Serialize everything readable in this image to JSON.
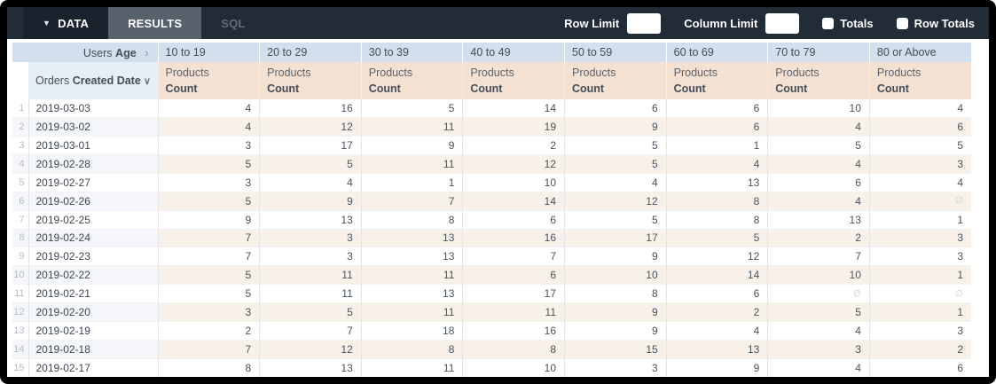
{
  "toolbar": {
    "data_tab": "DATA",
    "results_tab": "RESULTS",
    "sql_tab": "SQL",
    "row_limit_label": "Row Limit",
    "row_limit_value": "",
    "column_limit_label": "Column Limit",
    "column_limit_value": "",
    "totals_label": "Totals",
    "row_totals_label": "Row Totals",
    "totals_checked": false,
    "row_totals_checked": false
  },
  "table": {
    "pivot_field": {
      "view": "Users",
      "field": "Age",
      "expand_icon": "chevron-right"
    },
    "pivot_values": [
      "10 to 19",
      "20 to 29",
      "30 to 39",
      "40 to 49",
      "50 to 59",
      "60 to 69",
      "70 to 79",
      "80 or Above"
    ],
    "row_field": {
      "view": "Orders",
      "field": "Created Date",
      "sort_icon": "chevron-down"
    },
    "measure": {
      "view": "Products",
      "field": "Count"
    },
    "null_symbol": "∅",
    "rows": [
      {
        "index": 1,
        "date": "2019-03-03",
        "values": [
          4,
          16,
          5,
          14,
          6,
          6,
          10,
          4
        ]
      },
      {
        "index": 2,
        "date": "2019-03-02",
        "values": [
          4,
          12,
          11,
          19,
          9,
          6,
          4,
          6
        ]
      },
      {
        "index": 3,
        "date": "2019-03-01",
        "values": [
          3,
          17,
          9,
          2,
          5,
          1,
          5,
          5
        ]
      },
      {
        "index": 4,
        "date": "2019-02-28",
        "values": [
          5,
          5,
          11,
          12,
          5,
          4,
          4,
          3
        ]
      },
      {
        "index": 5,
        "date": "2019-02-27",
        "values": [
          3,
          4,
          1,
          10,
          4,
          13,
          6,
          4
        ]
      },
      {
        "index": 6,
        "date": "2019-02-26",
        "values": [
          5,
          9,
          7,
          14,
          12,
          8,
          4,
          null
        ]
      },
      {
        "index": 7,
        "date": "2019-02-25",
        "values": [
          9,
          13,
          8,
          6,
          5,
          8,
          13,
          1
        ]
      },
      {
        "index": 8,
        "date": "2019-02-24",
        "values": [
          7,
          3,
          13,
          16,
          17,
          5,
          2,
          3
        ]
      },
      {
        "index": 9,
        "date": "2019-02-23",
        "values": [
          7,
          3,
          13,
          7,
          9,
          12,
          7,
          3
        ]
      },
      {
        "index": 10,
        "date": "2019-02-22",
        "values": [
          5,
          11,
          11,
          6,
          10,
          14,
          10,
          1
        ]
      },
      {
        "index": 11,
        "date": "2019-02-21",
        "values": [
          5,
          11,
          13,
          17,
          8,
          6,
          null,
          null
        ]
      },
      {
        "index": 12,
        "date": "2019-02-20",
        "values": [
          3,
          5,
          11,
          11,
          9,
          2,
          5,
          1
        ]
      },
      {
        "index": 13,
        "date": "2019-02-19",
        "values": [
          2,
          7,
          18,
          16,
          9,
          4,
          4,
          3
        ]
      },
      {
        "index": 14,
        "date": "2019-02-18",
        "values": [
          7,
          12,
          8,
          8,
          15,
          13,
          3,
          2
        ]
      },
      {
        "index": 15,
        "date": "2019-02-17",
        "values": [
          8,
          13,
          11,
          10,
          3,
          9,
          4,
          6
        ]
      }
    ]
  },
  "colors": {
    "frame": "#000000",
    "toolbar_bg": "#212c37",
    "data_tab_bg": "#1a232d",
    "results_tab_bg": "#57616b",
    "pivot_header_bg": "#d2dfec",
    "dimension_header_bg": "#e8eef5",
    "measure_header_bg": "#f4e1d2",
    "stripe_cool": "#f4f6f9",
    "stripe_warm": "#f7f1ea"
  }
}
